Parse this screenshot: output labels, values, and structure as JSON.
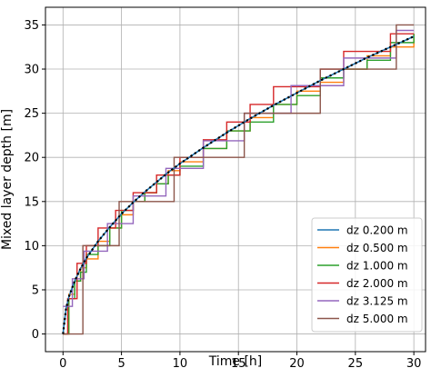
{
  "chart_data": {
    "type": "line",
    "xlabel": "Time [h]",
    "ylabel": "Mixed layer depth [m]",
    "xlim": [
      -1.5,
      31
    ],
    "ylim": [
      -2,
      37
    ],
    "xticks": [
      0,
      5,
      10,
      15,
      20,
      25,
      30
    ],
    "yticks": [
      0,
      5,
      10,
      15,
      20,
      25,
      30,
      35
    ],
    "grid": true,
    "legend_position": "lower-right",
    "series": [
      {
        "name": "dz  0.200 m",
        "color": "#1f77b4",
        "step": false,
        "x": [
          0,
          0.25,
          0.5,
          1,
          1.5,
          2,
          3,
          4,
          5,
          6,
          7,
          8,
          9,
          10,
          12,
          14,
          16,
          18,
          20,
          22,
          24,
          26,
          28,
          30
        ],
        "y": [
          0,
          2.8,
          4.2,
          6.0,
          7.4,
          8.6,
          10.5,
          12.1,
          13.6,
          14.9,
          16.1,
          17.2,
          18.3,
          19.3,
          21.1,
          22.8,
          24.4,
          25.9,
          27.3,
          28.7,
          30.0,
          31.3,
          32.5,
          33.7
        ]
      },
      {
        "name": "dz  0.500 m",
        "color": "#ff7f0e",
        "step": true,
        "x": [
          0,
          0.5,
          1,
          1.5,
          2,
          3,
          4,
          5,
          6,
          7,
          8,
          9,
          10,
          12,
          14,
          16,
          18,
          20,
          22,
          24,
          26,
          28,
          30
        ],
        "y": [
          0,
          4.5,
          6.0,
          7.5,
          8.5,
          10.5,
          12.0,
          13.5,
          15.0,
          16.0,
          17.0,
          18.5,
          19.5,
          21.0,
          23.0,
          24.5,
          26.0,
          27.5,
          28.5,
          30.0,
          31.5,
          32.5,
          34.0
        ]
      },
      {
        "name": "dz  1.000 m",
        "color": "#2ca02c",
        "step": true,
        "x": [
          0,
          0.5,
          1,
          1.5,
          2,
          3,
          4,
          5,
          6,
          7,
          8,
          9,
          10,
          12,
          14,
          16,
          18,
          20,
          22,
          24,
          26,
          28,
          30
        ],
        "y": [
          0,
          4,
          6,
          7,
          9,
          10,
          12,
          14,
          15,
          16,
          17,
          18,
          19,
          21,
          23,
          24,
          26,
          27,
          29,
          30,
          31,
          33,
          34
        ]
      },
      {
        "name": "dz  2.000 m",
        "color": "#d62728",
        "step": true,
        "x": [
          0,
          0.4,
          1.2,
          2,
          3,
          4.5,
          6,
          8,
          10,
          12,
          14,
          16,
          18,
          20,
          22,
          24,
          26,
          28,
          30
        ],
        "y": [
          0,
          4,
          8,
          10,
          12,
          14,
          16,
          18,
          20,
          22,
          24,
          26,
          28,
          28,
          30,
          32,
          32,
          34,
          34
        ]
      },
      {
        "name": "dz  3.125 m",
        "color": "#9467bd",
        "step": true,
        "x": [
          0,
          0.8,
          1.8,
          3.8,
          6,
          8.8,
          12,
          15.5,
          19.5,
          24,
          28.5,
          30
        ],
        "y": [
          3.125,
          6.25,
          9.375,
          12.5,
          15.625,
          18.75,
          21.875,
          25.0,
          28.125,
          31.25,
          34.375,
          34.375
        ]
      },
      {
        "name": "dz  5.000 m",
        "color": "#8c564b",
        "step": true,
        "x": [
          0,
          1.7,
          4.8,
          9.5,
          15.5,
          22,
          28.5,
          30
        ],
        "y": [
          0,
          10,
          15,
          20,
          25,
          30,
          35,
          35
        ]
      },
      {
        "name": "",
        "color": "#000000",
        "step": false,
        "dashed": true,
        "x": [
          0,
          0.25,
          0.5,
          1,
          1.5,
          2,
          3,
          4,
          5,
          6,
          7,
          8,
          9,
          10,
          12,
          14,
          16,
          18,
          20,
          22,
          24,
          26,
          28,
          30
        ],
        "y": [
          0,
          2.8,
          4.2,
          6.0,
          7.4,
          8.6,
          10.5,
          12.1,
          13.6,
          14.9,
          16.1,
          17.2,
          18.3,
          19.3,
          21.1,
          22.8,
          24.4,
          25.9,
          27.3,
          28.7,
          30.0,
          31.3,
          32.5,
          33.7
        ]
      }
    ]
  }
}
